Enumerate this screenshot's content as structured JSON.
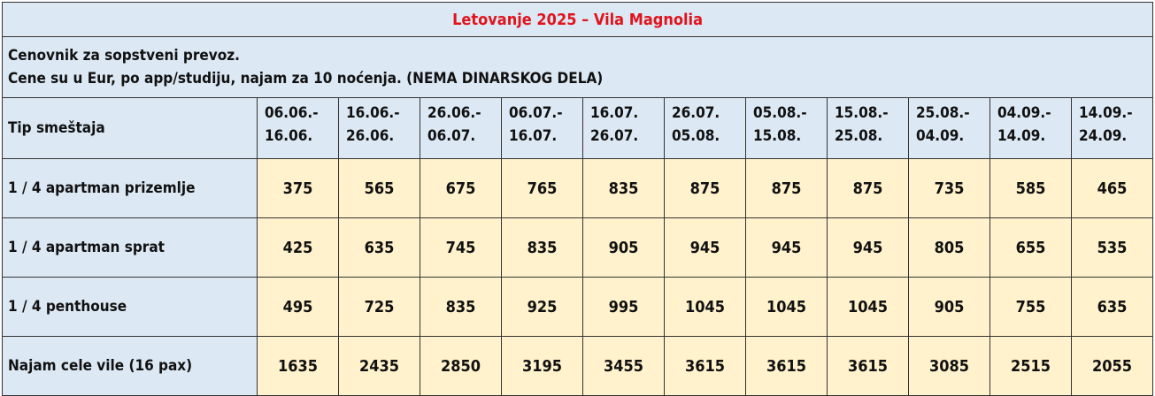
{
  "title": "Letovanje 2025 – Vila Magnolia",
  "info_lines": [
    "Cenovnik za sopstveni prevoz.",
    "Cene su u Eur, po app/studiju, najam za 10 noćenja. (NEMA DINARSKOG DELA)"
  ],
  "header": {
    "label": "Tip smeštaja",
    "periods": [
      [
        "06.06.-",
        "16.06."
      ],
      [
        "16.06.-",
        "26.06."
      ],
      [
        "26.06.-",
        "06.07."
      ],
      [
        "06.07.-",
        "16.07."
      ],
      [
        "16.07.",
        "26.07."
      ],
      [
        "26.07.",
        "05.08."
      ],
      [
        "05.08.-",
        "15.08."
      ],
      [
        "15.08.-",
        "25.08."
      ],
      [
        "25.08.-",
        "04.09."
      ],
      [
        "04.09.-",
        "14.09."
      ],
      [
        "14.09.-",
        "24.09."
      ]
    ]
  },
  "rows": [
    {
      "label": "1 / 4 apartman prizemlje",
      "values": [
        "375",
        "565",
        "675",
        "765",
        "835",
        "875",
        "875",
        "875",
        "735",
        "585",
        "465"
      ]
    },
    {
      "label": "1 / 4 apartman sprat",
      "values": [
        "425",
        "635",
        "745",
        "835",
        "905",
        "945",
        "945",
        "945",
        "805",
        "655",
        "535"
      ]
    },
    {
      "label": "1 / 4 penthouse",
      "values": [
        "495",
        "725",
        "835",
        "925",
        "995",
        "1045",
        "1045",
        "1045",
        "905",
        "755",
        "635"
      ]
    },
    {
      "label": "Najam cele vile (16 pax)",
      "values": [
        "1635",
        "2435",
        "2850",
        "3195",
        "3455",
        "3615",
        "3615",
        "3615",
        "3085",
        "2515",
        "2055"
      ]
    }
  ]
}
